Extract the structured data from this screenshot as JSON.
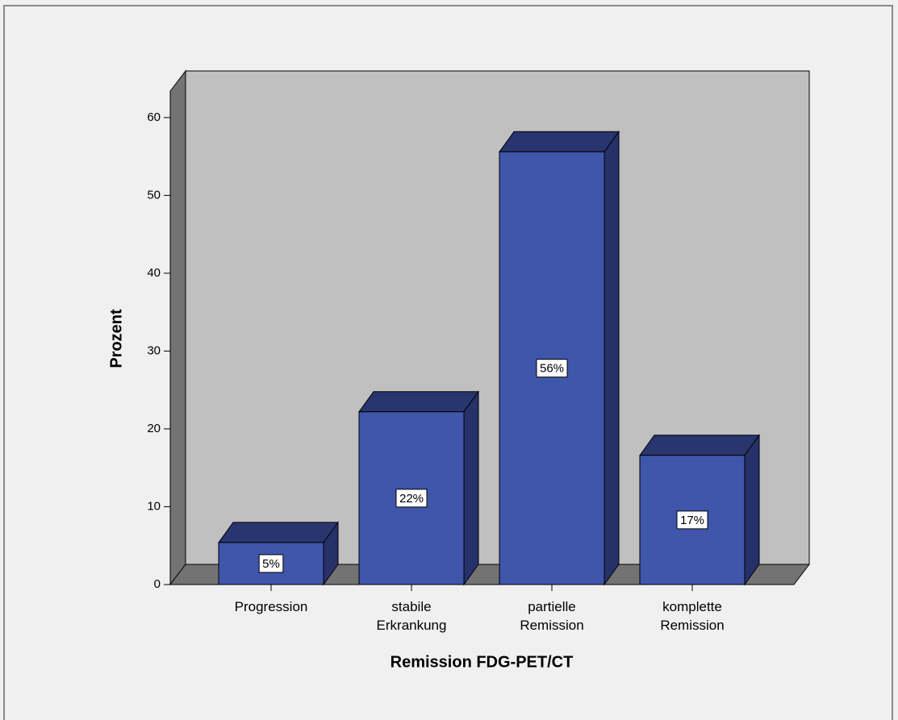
{
  "chart_data": {
    "type": "bar3d",
    "xlabel": "Remission FDG-PET/CT",
    "ylabel": "Prozent",
    "categories": [
      "Progression",
      "stabile Erkrankung",
      "partielle Remission",
      "komplette Remission"
    ],
    "values": [
      5.4,
      22.2,
      55.6,
      16.6
    ],
    "value_labels": [
      "5%",
      "22%",
      "56%",
      "17%"
    ],
    "color": "#3f56aa",
    "ylim": [
      0,
      63.4
    ],
    "yticks": [
      0,
      10,
      20,
      30,
      40,
      50,
      60
    ]
  }
}
